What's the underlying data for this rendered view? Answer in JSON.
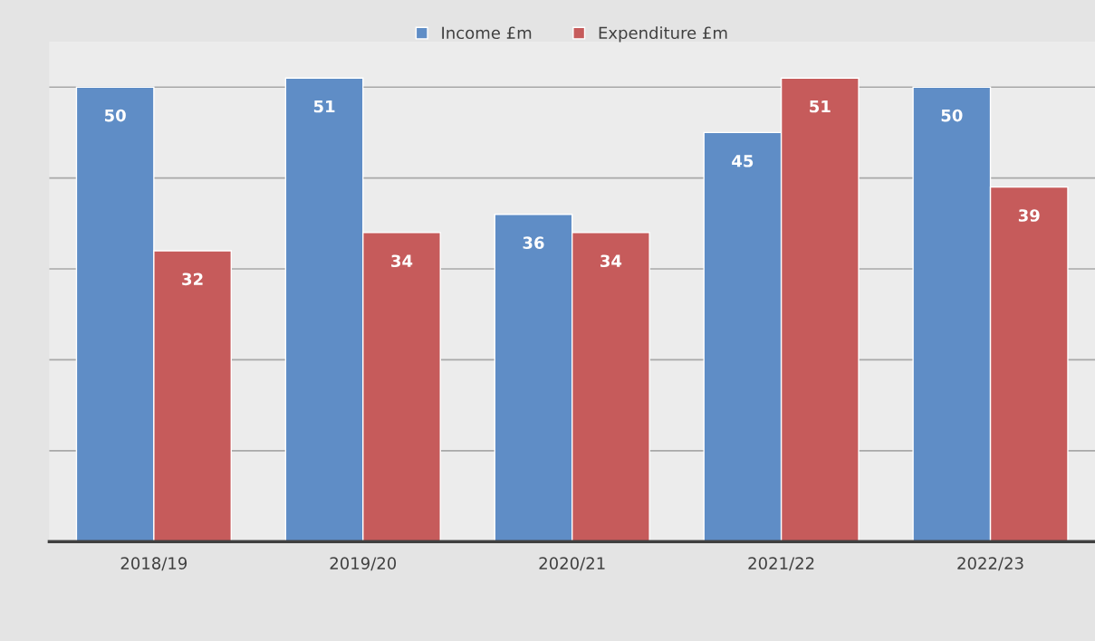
{
  "chart_data": {
    "type": "bar",
    "categories": [
      "2018/19",
      "2019/20",
      "2020/21",
      "2021/22",
      "2022/23"
    ],
    "series": [
      {
        "name": "Income £m",
        "color": "#5f8dc6",
        "values": [
          50,
          51,
          36,
          45,
          50
        ]
      },
      {
        "name": "Expenditure £m",
        "color": "#c65b5b",
        "values": [
          32,
          34,
          34,
          51,
          39
        ]
      }
    ],
    "ylim": [
      0,
      55
    ],
    "yticks": [
      {
        "value": 0,
        "label": null
      },
      {
        "value": 10,
        "label": null
      },
      {
        "value": 20,
        "label": null
      },
      {
        "value": 30,
        "label": null
      },
      {
        "value": 40,
        "label": null
      },
      {
        "value": 50,
        "label": null
      }
    ],
    "tick_labels": "x",
    "grid": "y",
    "legend": "top",
    "data_labels": true
  }
}
